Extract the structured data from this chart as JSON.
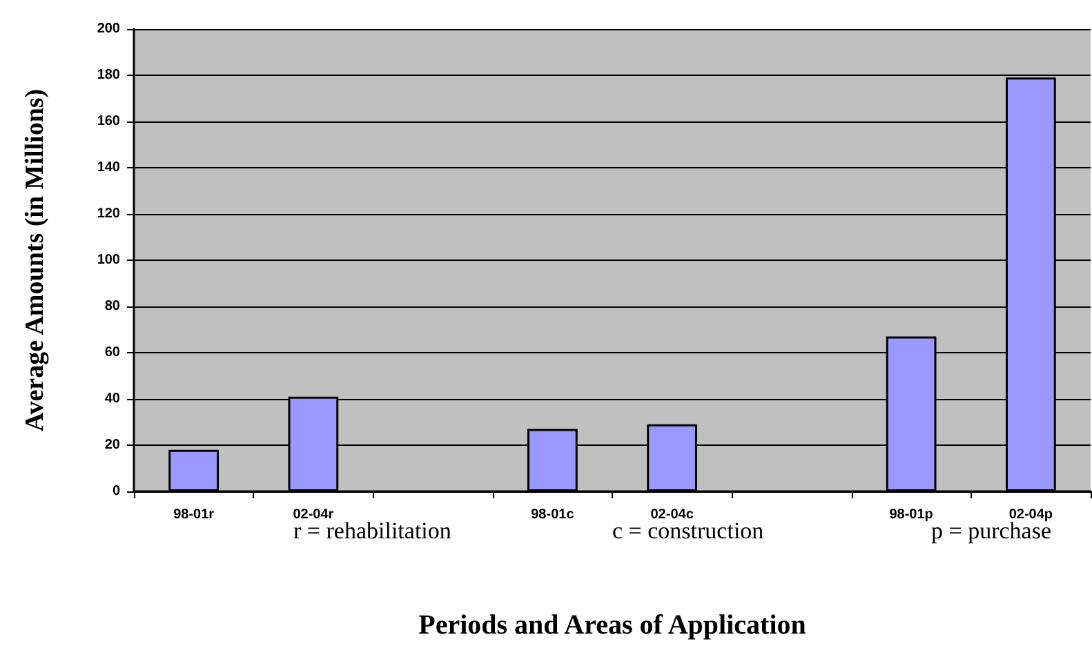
{
  "chart_data": {
    "type": "bar",
    "xlabel": "Periods and Areas of Application",
    "ylabel": "Average Amounts (in Millions)",
    "categories": [
      "98-01r",
      "02-04r",
      null,
      "98-01c",
      "02-04c",
      null,
      "98-01p",
      "02-04p"
    ],
    "values": [
      18,
      41,
      null,
      27,
      29,
      null,
      67,
      179
    ],
    "color": "#9999ff",
    "ylim": [
      0,
      200
    ],
    "yticks": [
      0,
      20,
      40,
      60,
      80,
      100,
      120,
      140,
      160,
      180,
      200
    ],
    "grid": "y",
    "annotations": [
      "r = rehabilitation",
      "c = construction",
      "p = purchase"
    ]
  }
}
